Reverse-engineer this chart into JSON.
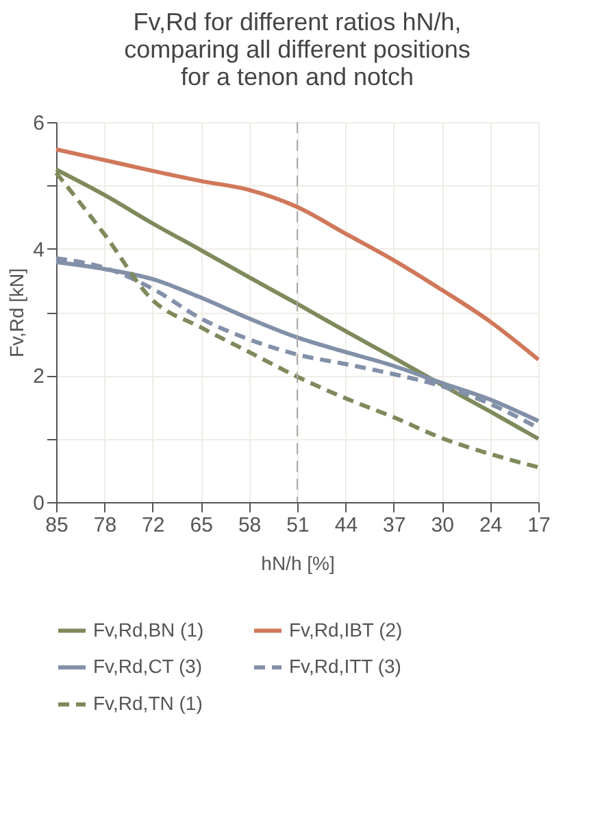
{
  "chart_data": {
    "type": "line",
    "title": "Fv,Rd for different ratios hN/h, comparing all different positions for a tenon and notch",
    "xlabel": "hN/h [%]",
    "ylabel": "Fv,Rd [kN]",
    "categories": [
      "85",
      "78",
      "72",
      "65",
      "58",
      "51",
      "44",
      "37",
      "30",
      "24",
      "17"
    ],
    "ylim": [
      0,
      6
    ],
    "yticks": [
      0,
      {
        "value": 1,
        "label": null
      },
      2,
      {
        "value": 3,
        "label": null
      },
      4,
      {
        "value": 5,
        "label": null
      },
      6
    ],
    "grid": true,
    "legend": "bottom",
    "marker": "none",
    "ref_lines": [
      {
        "axis": "x",
        "value": "51",
        "color": "#aaaaaa",
        "line_style": "dashed"
      }
    ],
    "series": [
      {
        "name": "Fv,Rd,BN (1)",
        "color": "#7f8a5c",
        "line_style": "solid",
        "values": [
          5.25,
          4.85,
          4.4,
          3.98,
          3.55,
          3.13,
          2.7,
          2.28,
          1.85,
          1.43,
          1.0
        ]
      },
      {
        "name": "Fv,Rd,IBT (2)",
        "color": "#d0785a",
        "line_style": "solid",
        "values": [
          5.57,
          5.4,
          5.23,
          5.07,
          4.93,
          4.66,
          4.24,
          3.82,
          3.35,
          2.85,
          2.25
        ]
      },
      {
        "name": "Fv,Rd,CT (3)",
        "color": "#8290a8",
        "line_style": "solid",
        "values": [
          3.79,
          3.68,
          3.52,
          3.23,
          2.9,
          2.6,
          2.37,
          2.15,
          1.88,
          1.62,
          1.28
        ]
      },
      {
        "name": "Fv,Rd,ITT (3)",
        "color": "#8290a8",
        "line_style": "dashed",
        "values": [
          3.85,
          3.7,
          3.37,
          2.9,
          2.57,
          2.33,
          2.18,
          2.02,
          1.83,
          1.55,
          1.17
        ]
      },
      {
        "name": "Fv,Rd,TN (1)",
        "color": "#7f8a5c",
        "line_style": "dashed",
        "values": [
          5.2,
          4.23,
          3.19,
          2.76,
          2.37,
          1.98,
          1.64,
          1.34,
          1.01,
          0.76,
          0.55
        ]
      }
    ]
  }
}
